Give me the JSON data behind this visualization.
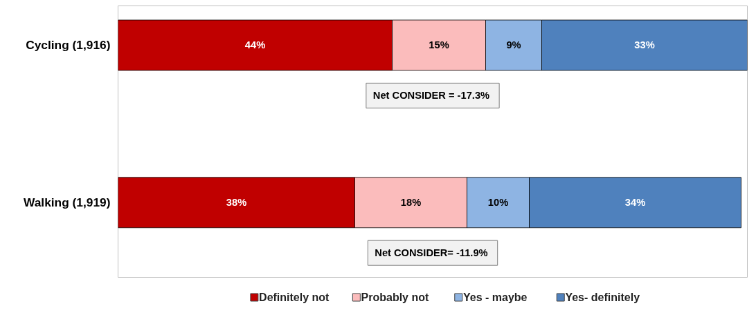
{
  "chart_data": {
    "type": "bar",
    "orientation": "horizontal",
    "stacked": true,
    "categories": [
      "Cycling (1,916)",
      "Walking (1,919)"
    ],
    "series": [
      {
        "name": "Definitely not",
        "color": "#c00000",
        "values": [
          44,
          38
        ],
        "value_labels": [
          "44%",
          "38%"
        ]
      },
      {
        "name": "Probably not",
        "color": "#fbbcbc",
        "values": [
          15,
          18
        ],
        "value_labels": [
          "15%",
          "18%"
        ]
      },
      {
        "name": "Yes - maybe",
        "color": "#8eb4e3",
        "values": [
          9,
          10
        ],
        "value_labels": [
          "9%",
          "10%"
        ]
      },
      {
        "name": "Yes-  definitely",
        "color": "#4f81bd",
        "values": [
          33,
          34
        ],
        "value_labels": [
          "33%",
          "34%"
        ]
      }
    ],
    "tick_labels": "y",
    "legend": "bottom",
    "annotations": [
      "Net CONSIDER  = -17.3%",
      "Net CONSIDER=  -11.9%"
    ]
  }
}
